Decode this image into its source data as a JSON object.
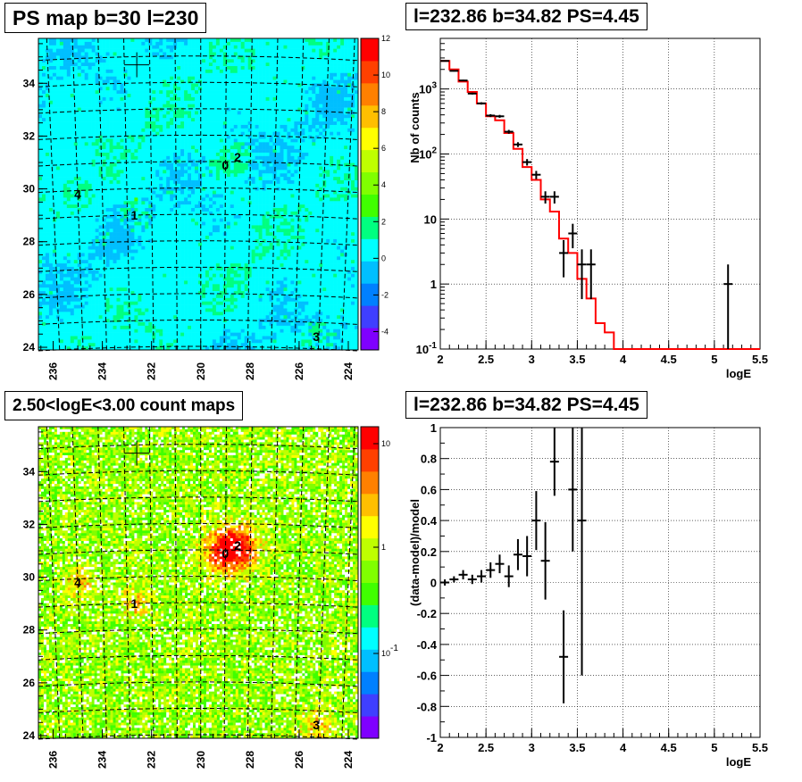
{
  "chart_data": [
    {
      "type": "heatmap",
      "title": "PS map b=30 l=230",
      "x_ticks": [
        "236",
        "234",
        "232",
        "230",
        "228",
        "226",
        "224"
      ],
      "y_ticks": [
        "24",
        "26",
        "28",
        "30",
        "32",
        "34"
      ],
      "xlim": [
        236.6,
        223.6
      ],
      "ylim": [
        23.9,
        35.7
      ],
      "colorbar_ticks": [
        "12",
        "10",
        "8",
        "6",
        "4",
        "2",
        "0",
        "-2",
        "-4"
      ],
      "colorbar_range": [
        -5,
        12
      ],
      "colors": [
        "#7f00ff",
        "#3f3fff",
        "#0080ff",
        "#00bfff",
        "#00ffff",
        "#00ff80",
        "#40ff00",
        "#80ff00",
        "#bfff00",
        "#ffff00",
        "#ffbf00",
        "#ff8000",
        "#ff4000",
        "#ff0000"
      ],
      "sources": [
        {
          "label": "0",
          "l": 229.0,
          "b": 30.9
        },
        {
          "label": "2",
          "l": 228.5,
          "b": 31.2
        },
        {
          "label": "4",
          "l": 235.0,
          "b": 29.8
        },
        {
          "label": "1",
          "l": 232.7,
          "b": 29.0
        },
        {
          "label": "3",
          "l": 225.3,
          "b": 24.4
        }
      ],
      "marker": {
        "l": 232.6,
        "b": 34.7
      }
    },
    {
      "type": "line",
      "title": "l=232.86 b=34.82 PS=4.45",
      "xlabel": "logE",
      "ylabel": "Nb of counts",
      "xlim": [
        2,
        5.5
      ],
      "ylim": [
        0.1,
        6000
      ],
      "yscale": "log",
      "x_ticks": [
        "2",
        "2.5",
        "3",
        "3.5",
        "4",
        "4.5",
        "5",
        "5.5"
      ],
      "y_ticks": [
        "10^-1",
        "1",
        "10",
        "10^2",
        "10^3"
      ],
      "grid": true,
      "data": [
        {
          "x": 2.05,
          "y": 2700
        },
        {
          "x": 2.15,
          "y": 1900
        },
        {
          "x": 2.25,
          "y": 1350
        },
        {
          "x": 2.35,
          "y": 850
        },
        {
          "x": 2.45,
          "y": 600
        },
        {
          "x": 2.55,
          "y": 390
        },
        {
          "x": 2.65,
          "y": 380
        },
        {
          "x": 2.75,
          "y": 220
        },
        {
          "x": 2.85,
          "y": 140
        },
        {
          "x": 2.95,
          "y": 75
        },
        {
          "x": 3.05,
          "y": 48
        },
        {
          "x": 3.15,
          "y": 22
        },
        {
          "x": 3.25,
          "y": 22
        },
        {
          "x": 3.35,
          "y": 3
        },
        {
          "x": 3.45,
          "y": 6
        },
        {
          "x": 3.55,
          "y": 2
        },
        {
          "x": 3.65,
          "y": 2
        },
        {
          "x": 5.15,
          "y": 1
        }
      ],
      "model": [
        {
          "x0": 2.0,
          "x1": 2.1,
          "y": 2700
        },
        {
          "x0": 2.1,
          "x1": 2.2,
          "y": 2000
        },
        {
          "x0": 2.2,
          "x1": 2.3,
          "y": 1300
        },
        {
          "x0": 2.3,
          "x1": 2.4,
          "y": 900
        },
        {
          "x0": 2.4,
          "x1": 2.5,
          "y": 600
        },
        {
          "x0": 2.5,
          "x1": 2.6,
          "y": 380
        },
        {
          "x0": 2.6,
          "x1": 2.7,
          "y": 330
        },
        {
          "x0": 2.7,
          "x1": 2.8,
          "y": 210
        },
        {
          "x0": 2.8,
          "x1": 2.9,
          "y": 120
        },
        {
          "x0": 2.9,
          "x1": 3.0,
          "y": 63
        },
        {
          "x0": 3.0,
          "x1": 3.1,
          "y": 40
        },
        {
          "x0": 3.1,
          "x1": 3.2,
          "y": 20
        },
        {
          "x0": 3.2,
          "x1": 3.3,
          "y": 13
        },
        {
          "x0": 3.3,
          "x1": 3.4,
          "y": 5
        },
        {
          "x0": 3.4,
          "x1": 3.5,
          "y": 3
        },
        {
          "x0": 3.5,
          "x1": 3.6,
          "y": 1.2
        },
        {
          "x0": 3.6,
          "x1": 3.7,
          "y": 0.6
        },
        {
          "x0": 3.7,
          "x1": 3.8,
          "y": 0.25
        },
        {
          "x0": 3.8,
          "x1": 3.9,
          "y": 0.18
        },
        {
          "x0": 3.9,
          "x1": 5.5,
          "y": 0.1
        }
      ],
      "colors": {
        "data": "#000000",
        "model": "#ff0000"
      }
    },
    {
      "type": "heatmap",
      "title": "2.50<logE<3.00 count maps",
      "x_ticks": [
        "236",
        "234",
        "232",
        "230",
        "228",
        "226",
        "224"
      ],
      "y_ticks": [
        "24",
        "26",
        "28",
        "30",
        "32",
        "34"
      ],
      "xlim": [
        236.6,
        223.6
      ],
      "ylim": [
        23.9,
        35.7
      ],
      "colorbar_ticks": [
        "10",
        "1",
        "10^-1"
      ],
      "colorbar_scale": "log",
      "colors": [
        "#7f00ff",
        "#3f3fff",
        "#0080ff",
        "#00bfff",
        "#00ffff",
        "#00ff80",
        "#40ff00",
        "#80ff00",
        "#bfff00",
        "#ffff00",
        "#ffbf00",
        "#ff8000",
        "#ff4000",
        "#ff0000"
      ],
      "sources": [
        {
          "label": "0",
          "l": 229.0,
          "b": 30.9
        },
        {
          "label": "2",
          "l": 228.5,
          "b": 31.2
        },
        {
          "label": "4",
          "l": 235.0,
          "b": 29.8
        },
        {
          "label": "1",
          "l": 232.7,
          "b": 29.0
        },
        {
          "label": "3",
          "l": 225.3,
          "b": 24.4
        }
      ],
      "marker": {
        "l": 232.6,
        "b": 34.7
      }
    },
    {
      "type": "scatter",
      "title": "l=232.86 b=34.82 PS=4.45",
      "xlabel": "logE",
      "ylabel": "(data-model)/model",
      "xlim": [
        2,
        5.5
      ],
      "ylim": [
        -1,
        1
      ],
      "x_ticks": [
        "2",
        "2.5",
        "3",
        "3.5",
        "4",
        "4.5",
        "5",
        "5.5"
      ],
      "y_ticks": [
        "-1",
        "-0.8",
        "-0.6",
        "-0.4",
        "-0.2",
        "0",
        "0.2",
        "0.4",
        "0.6",
        "0.8",
        "1"
      ],
      "grid": true,
      "data": [
        {
          "x": 2.05,
          "y": 0.0,
          "err": 0.02
        },
        {
          "x": 2.15,
          "y": 0.02,
          "err": 0.02
        },
        {
          "x": 2.25,
          "y": 0.05,
          "err": 0.03
        },
        {
          "x": 2.35,
          "y": 0.02,
          "err": 0.03
        },
        {
          "x": 2.45,
          "y": 0.04,
          "err": 0.04
        },
        {
          "x": 2.55,
          "y": 0.08,
          "err": 0.05
        },
        {
          "x": 2.65,
          "y": 0.12,
          "err": 0.06
        },
        {
          "x": 2.75,
          "y": 0.04,
          "err": 0.07
        },
        {
          "x": 2.85,
          "y": 0.18,
          "err": 0.1
        },
        {
          "x": 2.95,
          "y": 0.17,
          "err": 0.13
        },
        {
          "x": 3.05,
          "y": 0.4,
          "err": 0.19
        },
        {
          "x": 3.15,
          "y": 0.14,
          "err": 0.25
        },
        {
          "x": 3.25,
          "y": 0.78,
          "err": 0.22
        },
        {
          "x": 3.35,
          "y": -0.48,
          "err": 0.3
        },
        {
          "x": 3.45,
          "y": 0.6,
          "err": 0.4
        },
        {
          "x": 3.55,
          "y": 0.4,
          "err": 1.0
        }
      ],
      "colors": {
        "data": "#000000"
      }
    }
  ]
}
